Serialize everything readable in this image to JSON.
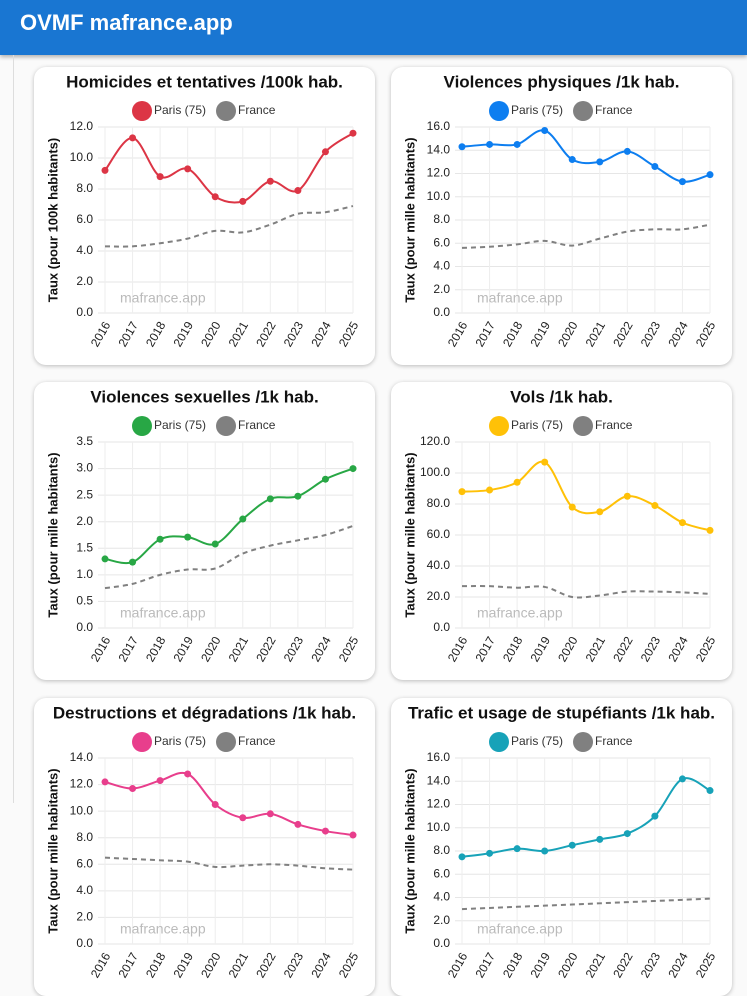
{
  "header": {
    "title": "OVMF mafrance.app"
  },
  "chart_data": [
    {
      "type": "line",
      "title": "Homicides et tentatives /100k hab.",
      "ylabel": "Taux (pour 100k habitants)",
      "annotation": "mafrance.app",
      "categories": [
        "2016",
        "2017",
        "2018",
        "2019",
        "2020",
        "2021",
        "2022",
        "2023",
        "2024",
        "2025"
      ],
      "ylim": [
        0,
        12
      ],
      "yticks": [
        {
          "value": 0,
          "label": "0.0"
        },
        {
          "value": 2,
          "label": "2.0"
        },
        {
          "value": 4,
          "label": "4.0"
        },
        {
          "value": 6,
          "label": "6.0"
        },
        {
          "value": 8,
          "label": "8.0"
        },
        {
          "value": 10,
          "label": "10.0"
        },
        {
          "value": 12,
          "label": "12.0"
        }
      ],
      "grid": true,
      "series": [
        {
          "name": "Paris (75)",
          "color": "#dc3545",
          "values": [
            9.2,
            11.3,
            8.8,
            9.3,
            7.5,
            7.2,
            8.5,
            7.9,
            10.4,
            11.6
          ]
        },
        {
          "name": "France",
          "color": "#808080",
          "dashed": true,
          "values": [
            4.3,
            4.3,
            4.5,
            4.8,
            5.3,
            5.2,
            5.7,
            6.4,
            6.5,
            6.9
          ]
        }
      ]
    },
    {
      "type": "line",
      "title": "Violences physiques /1k hab.",
      "ylabel": "Taux (pour mille habitants)",
      "annotation": "mafrance.app",
      "categories": [
        "2016",
        "2017",
        "2018",
        "2019",
        "2020",
        "2021",
        "2022",
        "2023",
        "2024",
        "2025"
      ],
      "ylim": [
        0,
        16
      ],
      "yticks": [
        {
          "value": 0,
          "label": "0.0"
        },
        {
          "value": 2,
          "label": "2.0"
        },
        {
          "value": 4,
          "label": "4.0"
        },
        {
          "value": 6,
          "label": "6.0"
        },
        {
          "value": 8,
          "label": "8.0"
        },
        {
          "value": 10,
          "label": "10.0"
        },
        {
          "value": 12,
          "label": "12.0"
        },
        {
          "value": 14,
          "label": "14.0"
        },
        {
          "value": 16,
          "label": "16.0"
        }
      ],
      "grid": true,
      "series": [
        {
          "name": "Paris (75)",
          "color": "#0d7ef0",
          "values": [
            14.3,
            14.5,
            14.5,
            15.7,
            13.2,
            13.0,
            13.9,
            12.6,
            11.3,
            11.9
          ]
        },
        {
          "name": "France",
          "color": "#808080",
          "dashed": true,
          "values": [
            5.6,
            5.7,
            5.9,
            6.2,
            5.8,
            6.4,
            7.0,
            7.2,
            7.2,
            7.6
          ]
        }
      ]
    },
    {
      "type": "line",
      "title": "Violences sexuelles /1k hab.",
      "ylabel": "Taux (pour mille habitants)",
      "annotation": "mafrance.app",
      "categories": [
        "2016",
        "2017",
        "2018",
        "2019",
        "2020",
        "2021",
        "2022",
        "2023",
        "2024",
        "2025"
      ],
      "ylim": [
        0,
        3.5
      ],
      "yticks": [
        {
          "value": 0,
          "label": "0.0"
        },
        {
          "value": 0.5,
          "label": "0.5"
        },
        {
          "value": 1,
          "label": "1.0"
        },
        {
          "value": 1.5,
          "label": "1.5"
        },
        {
          "value": 2,
          "label": "2.0"
        },
        {
          "value": 2.5,
          "label": "2.5"
        },
        {
          "value": 3,
          "label": "3.0"
        },
        {
          "value": 3.5,
          "label": "3.5"
        }
      ],
      "grid": true,
      "series": [
        {
          "name": "Paris (75)",
          "color": "#28a745",
          "values": [
            1.3,
            1.24,
            1.67,
            1.71,
            1.58,
            2.05,
            2.43,
            2.48,
            2.8,
            3.0
          ]
        },
        {
          "name": "France",
          "color": "#808080",
          "dashed": true,
          "values": [
            0.75,
            0.83,
            1.0,
            1.1,
            1.12,
            1.4,
            1.55,
            1.65,
            1.75,
            1.92
          ]
        }
      ]
    },
    {
      "type": "line",
      "title": "Vols /1k hab.",
      "ylabel": "Taux (pour mille habitants)",
      "annotation": "mafrance.app",
      "categories": [
        "2016",
        "2017",
        "2018",
        "2019",
        "2020",
        "2021",
        "2022",
        "2023",
        "2024",
        "2025"
      ],
      "ylim": [
        0,
        120
      ],
      "yticks": [
        {
          "value": 0,
          "label": "0.0"
        },
        {
          "value": 20,
          "label": "20.0"
        },
        {
          "value": 40,
          "label": "40.0"
        },
        {
          "value": 60,
          "label": "60.0"
        },
        {
          "value": 80,
          "label": "80.0"
        },
        {
          "value": 100,
          "label": "100.0"
        },
        {
          "value": 120,
          "label": "120.0"
        }
      ],
      "grid": true,
      "series": [
        {
          "name": "Paris (75)",
          "color": "#ffc107",
          "values": [
            88,
            89,
            94,
            107,
            78,
            75,
            85,
            79,
            68,
            63
          ]
        },
        {
          "name": "France",
          "color": "#808080",
          "dashed": true,
          "values": [
            27,
            27,
            26,
            26.5,
            20,
            21,
            23.5,
            23.5,
            23,
            22
          ]
        }
      ]
    },
    {
      "type": "line",
      "title": "Destructions et dégradations /1k hab.",
      "ylabel": "Taux (pour mille habitants)",
      "annotation": "mafrance.app",
      "categories": [
        "2016",
        "2017",
        "2018",
        "2019",
        "2020",
        "2021",
        "2022",
        "2023",
        "2024",
        "2025"
      ],
      "ylim": [
        0,
        14
      ],
      "yticks": [
        {
          "value": 0,
          "label": "0.0"
        },
        {
          "value": 2,
          "label": "2.0"
        },
        {
          "value": 4,
          "label": "4.0"
        },
        {
          "value": 6,
          "label": "6.0"
        },
        {
          "value": 8,
          "label": "8.0"
        },
        {
          "value": 10,
          "label": "10.0"
        },
        {
          "value": 12,
          "label": "12.0"
        },
        {
          "value": 14,
          "label": "14.0"
        }
      ],
      "grid": true,
      "series": [
        {
          "name": "Paris (75)",
          "color": "#e83e8c",
          "values": [
            12.2,
            11.7,
            12.3,
            12.8,
            10.5,
            9.5,
            9.8,
            9.0,
            8.5,
            8.2
          ]
        },
        {
          "name": "France",
          "color": "#808080",
          "dashed": true,
          "values": [
            6.5,
            6.4,
            6.3,
            6.2,
            5.8,
            5.9,
            6.0,
            5.9,
            5.7,
            5.6
          ]
        }
      ]
    },
    {
      "type": "line",
      "title": "Trafic et usage de stupéfiants /1k hab.",
      "ylabel": "Taux (pour mille habitants)",
      "annotation": "mafrance.app",
      "categories": [
        "2016",
        "2017",
        "2018",
        "2019",
        "2020",
        "2021",
        "2022",
        "2023",
        "2024",
        "2025"
      ],
      "ylim": [
        0,
        16
      ],
      "yticks": [
        {
          "value": 0,
          "label": "0.0"
        },
        {
          "value": 2,
          "label": "2.0"
        },
        {
          "value": 4,
          "label": "4.0"
        },
        {
          "value": 6,
          "label": "6.0"
        },
        {
          "value": 8,
          "label": "8.0"
        },
        {
          "value": 10,
          "label": "10.0"
        },
        {
          "value": 12,
          "label": "12.0"
        },
        {
          "value": 14,
          "label": "14.0"
        },
        {
          "value": 16,
          "label": "16.0"
        }
      ],
      "grid": true,
      "series": [
        {
          "name": "Paris (75)",
          "color": "#17a2b8",
          "values": [
            7.5,
            7.8,
            8.2,
            8.0,
            8.5,
            9.0,
            9.5,
            11.0,
            14.2,
            13.2
          ]
        },
        {
          "name": "France",
          "color": "#808080",
          "dashed": true,
          "values": [
            3.0,
            3.1,
            3.2,
            3.3,
            3.4,
            3.5,
            3.6,
            3.7,
            3.8,
            3.9
          ]
        }
      ]
    }
  ]
}
